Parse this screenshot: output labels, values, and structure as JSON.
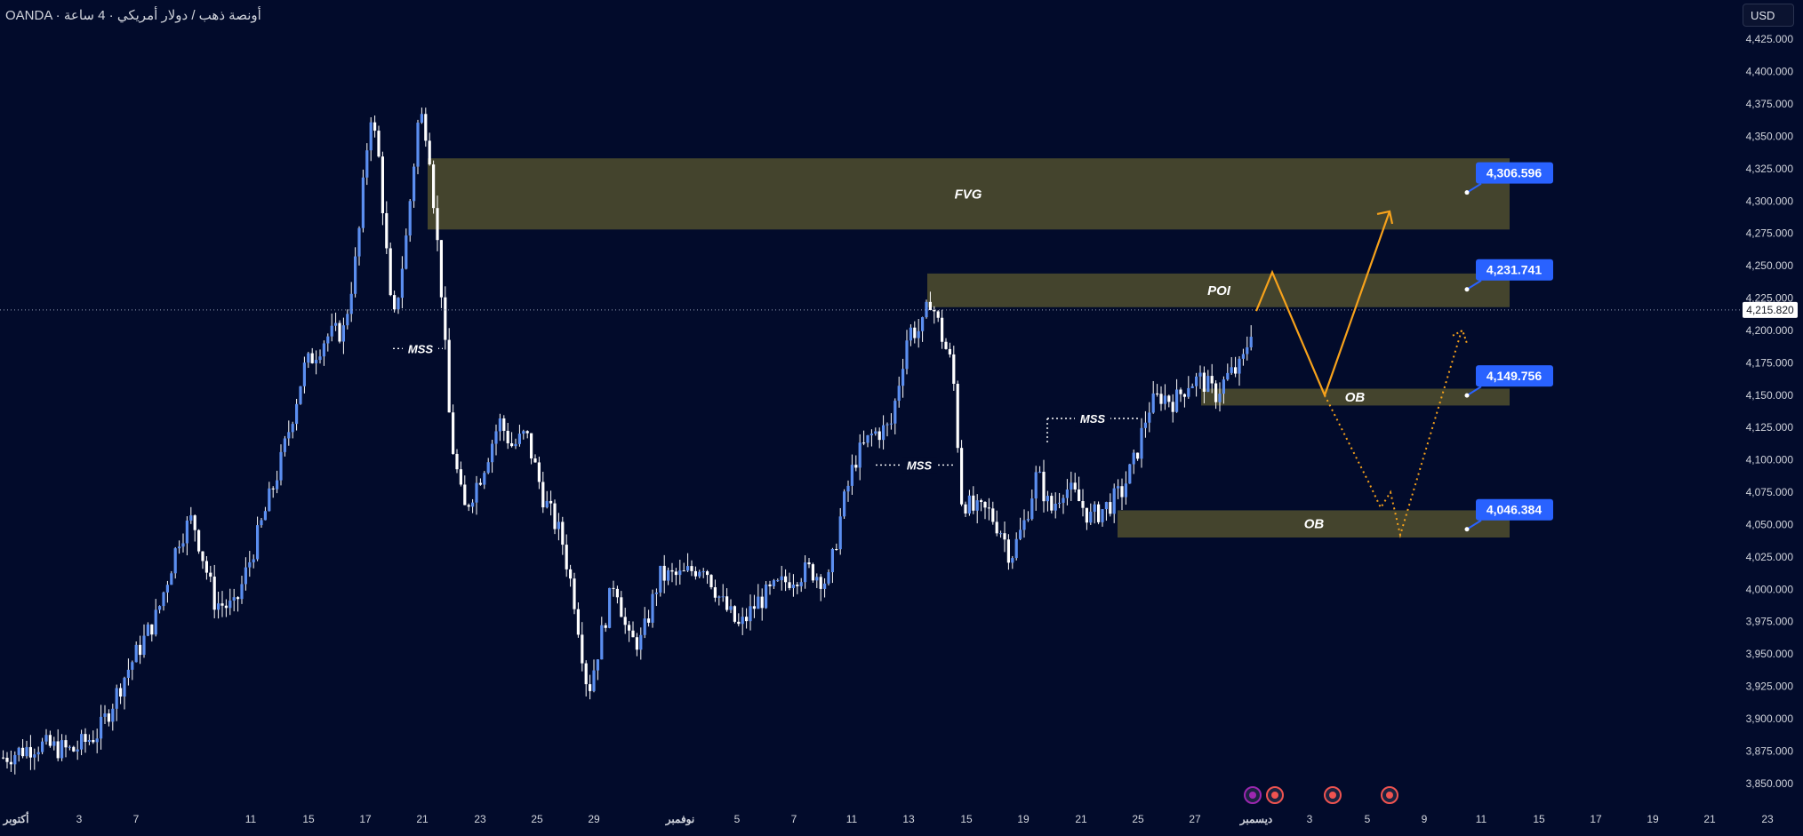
{
  "header": {
    "title": "OANDA · أونصة ذهب / دولار أمريكي · 4 ساعة",
    "currency": "USD"
  },
  "colors": {
    "background": "#020b2b",
    "candle": "#5b8ef0",
    "candle_wick": "#ffffff",
    "zone": "#4a4a2e",
    "path": "#f7a21b",
    "tag": "#2962ff"
  },
  "chart_data": {
    "type": "candlestick",
    "symbol": "XAU/USD",
    "ylim": [
      3837.5,
      4437.5
    ],
    "current_price": 4215.82,
    "current_price_label": "4,215.820",
    "y_ticks": [
      4425,
      4400,
      4375,
      4350,
      4325,
      4300,
      4275,
      4250,
      4225,
      4200,
      4175,
      4150,
      4125,
      4100,
      4075,
      4050,
      4025,
      4000,
      3975,
      3950,
      3925,
      3900,
      3875,
      3850
    ],
    "y_tick_labels": [
      "4,425.000",
      "4,400.000",
      "4,375.000",
      "4,350.000",
      "4,325.000",
      "4,300.000",
      "4,275.000",
      "4,250.000",
      "4,225.000",
      "4,200.000",
      "4,175.000",
      "4,150.000",
      "4,125.000",
      "4,100.000",
      "4,075.000",
      "4,050.000",
      "4,025.000",
      "4,000.000",
      "3,975.000",
      "3,950.000",
      "3,925.000",
      "3,900.000",
      "3,875.000",
      "3,850.000"
    ],
    "x_ticks": [
      "أكتوبر",
      "3",
      "7",
      "11",
      "15",
      "17",
      "21",
      "23",
      "25",
      "29",
      "نوفمبر",
      "5",
      "7",
      "11",
      "13",
      "15",
      "19",
      "21",
      "25",
      "27",
      "ديسمبر",
      "3",
      "5",
      "9",
      "11",
      "15",
      "17",
      "19",
      "21",
      "23"
    ],
    "zones": [
      {
        "label": "FVG",
        "top": 4333,
        "bottom": 4278,
        "tag": "4,306.596",
        "tag_value": 4306.596
      },
      {
        "label": "POI",
        "top": 4244,
        "bottom": 4218,
        "tag": "4,231.741",
        "tag_value": 4231.741
      },
      {
        "label": "OB",
        "top": 4155,
        "bottom": 4142,
        "tag": "4,149.756",
        "tag_value": 4149.756
      },
      {
        "label": "OB",
        "top": 4061,
        "bottom": 4040,
        "tag": "4,046.384",
        "tag_value": 4046.384
      }
    ],
    "mss": [
      {
        "label": "MSS",
        "price": 4186
      },
      {
        "label": "MSS",
        "price": 4132
      },
      {
        "label": "MSS",
        "price": 4096
      }
    ],
    "projected_path_solid": [
      4215,
      4245,
      4150,
      4292
    ],
    "projected_path_dotted": [
      4150,
      4082,
      4063,
      4075,
      4042,
      4200
    ]
  }
}
